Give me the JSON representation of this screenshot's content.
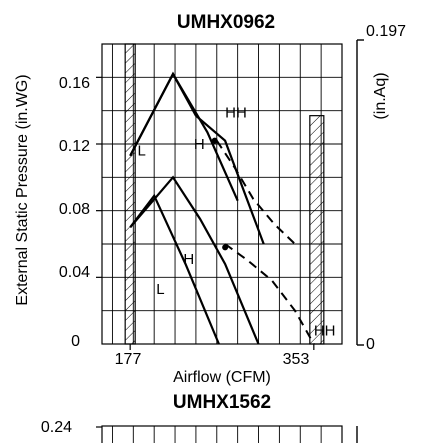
{
  "chart_data": [
    {
      "type": "line",
      "title": "UMHX0962",
      "xlabel": "Airflow (CFM)",
      "ylabel": "External Static Pressure   (in.WG)",
      "y2label": "(in.Aq)",
      "x_tick_labels": [
        "177",
        "353"
      ],
      "y_tick_labels": [
        "0",
        "0.04",
        "0.08",
        "0.12",
        "0.16"
      ],
      "y2_tick_labels": [
        "0",
        "0.197"
      ],
      "xlim": [
        150,
        380
      ],
      "ylim": [
        0,
        0.18
      ],
      "y2lim": [
        0,
        0.197
      ],
      "grid": true,
      "legend": "none",
      "hatched_limits": [
        177,
        353
      ],
      "series": [
        {
          "name": "L",
          "x": [
            177,
            218,
            251,
            280
          ],
          "y": [
            0.113,
            0.162,
            0.127,
            0.086
          ],
          "style": "solid"
        },
        {
          "name": "H",
          "x": [
            177,
            218,
            240,
            268,
            305
          ],
          "y": [
            0.113,
            0.162,
            0.137,
            0.122,
            0.06
          ],
          "style": "solid"
        },
        {
          "name": "HH",
          "x": [
            260,
            277,
            295,
            315,
            335
          ],
          "y": [
            0.122,
            0.106,
            0.087,
            0.072,
            0.06
          ],
          "style": "dashed"
        },
        {
          "name": "L",
          "x": [
            177,
            200,
            230,
            262
          ],
          "y": [
            0.07,
            0.089,
            0.048,
            0.0
          ],
          "style": "solid"
        },
        {
          "name": "H",
          "x": [
            177,
            218,
            244,
            268,
            300
          ],
          "y": [
            0.07,
            0.1,
            0.075,
            0.048,
            0.0
          ],
          "style": "solid"
        },
        {
          "name": "HH",
          "x": [
            268,
            290,
            313,
            335,
            353
          ],
          "y": [
            0.06,
            0.05,
            0.038,
            0.02,
            0.0
          ],
          "style": "dashed"
        }
      ],
      "curve_labels": [
        {
          "text": "L",
          "x": 184,
          "y": 0.113
        },
        {
          "text": "H",
          "x": 238,
          "y": 0.117
        },
        {
          "text": "HH",
          "x": 268,
          "y": 0.136
        },
        {
          "text": "H",
          "x": 228,
          "y": 0.048
        },
        {
          "text": "L",
          "x": 202,
          "y": 0.03
        },
        {
          "text": "HH",
          "x": 353,
          "y": 0.005
        }
      ]
    },
    {
      "type": "line",
      "title": "UMHX1562",
      "y_tick_labels": [
        "0.24"
      ],
      "ylim": [
        0,
        0.24
      ]
    }
  ]
}
